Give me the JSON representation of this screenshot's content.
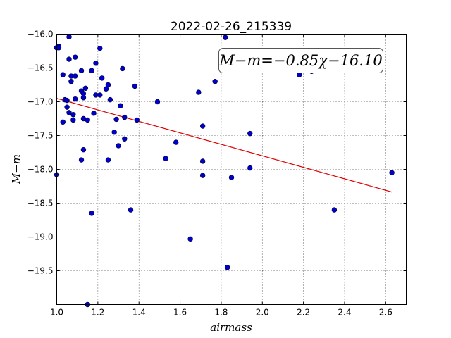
{
  "chart_data": {
    "type": "scatter",
    "title": "2022-02-26_215339",
    "xlabel": "airmass",
    "ylabel": "M−m",
    "xlim": [
      1.0,
      2.7
    ],
    "ylim": [
      -16.0,
      -20.0
    ],
    "y_inverted": true,
    "grid": true,
    "x_ticks": [
      1.0,
      1.2,
      1.4,
      1.6,
      1.8,
      2.0,
      2.2,
      2.4,
      2.6
    ],
    "x_tick_labels": [
      "1.0",
      "1.2",
      "1.4",
      "1.6",
      "1.8",
      "2.0",
      "2.2",
      "2.4",
      "2.6"
    ],
    "y_ticks": [
      -16.0,
      -16.5,
      -17.0,
      -17.5,
      -18.0,
      -18.5,
      -19.0,
      -19.5
    ],
    "y_tick_labels": [
      "−16.0",
      "−16.5",
      "−17.0",
      "−17.5",
      "−18.0",
      "−18.5",
      "−19.0",
      "−19.5"
    ],
    "annotation": "M−m=−0.85χ−16.10",
    "point_color": "#0000cc",
    "fit_color": "#dd0000",
    "fit": {
      "slope": -0.85,
      "intercept": -16.1,
      "x_range": [
        1.0,
        2.63
      ]
    },
    "points": [
      [
        1.0,
        -18.08
      ],
      [
        1.0,
        -16.2
      ],
      [
        1.01,
        -16.18
      ],
      [
        1.01,
        -16.2
      ],
      [
        1.03,
        -16.6
      ],
      [
        1.03,
        -17.3
      ],
      [
        1.04,
        -16.97
      ],
      [
        1.05,
        -16.98
      ],
      [
        1.05,
        -17.08
      ],
      [
        1.06,
        -16.04
      ],
      [
        1.06,
        -16.37
      ],
      [
        1.06,
        -17.16
      ],
      [
        1.07,
        -16.62
      ],
      [
        1.07,
        -16.7
      ],
      [
        1.08,
        -17.19
      ],
      [
        1.08,
        -17.27
      ],
      [
        1.09,
        -16.34
      ],
      [
        1.09,
        -16.62
      ],
      [
        1.09,
        -16.96
      ],
      [
        1.12,
        -16.84
      ],
      [
        1.12,
        -16.54
      ],
      [
        1.12,
        -17.86
      ],
      [
        1.13,
        -16.94
      ],
      [
        1.13,
        -16.88
      ],
      [
        1.13,
        -17.25
      ],
      [
        1.13,
        -17.71
      ],
      [
        1.14,
        -16.8
      ],
      [
        1.15,
        -17.27
      ],
      [
        1.15,
        -20.0
      ],
      [
        1.17,
        -18.65
      ],
      [
        1.17,
        -16.54
      ],
      [
        1.18,
        -17.17
      ],
      [
        1.19,
        -16.43
      ],
      [
        1.19,
        -16.9
      ],
      [
        1.21,
        -16.9
      ],
      [
        1.21,
        -16.21
      ],
      [
        1.22,
        -16.65
      ],
      [
        1.24,
        -16.81
      ],
      [
        1.25,
        -16.75
      ],
      [
        1.25,
        -17.86
      ],
      [
        1.26,
        -16.97
      ],
      [
        1.28,
        -17.45
      ],
      [
        1.29,
        -17.26
      ],
      [
        1.3,
        -17.65
      ],
      [
        1.31,
        -17.06
      ],
      [
        1.32,
        -16.51
      ],
      [
        1.33,
        -17.55
      ],
      [
        1.33,
        -17.23
      ],
      [
        1.36,
        -18.6
      ],
      [
        1.38,
        -16.77
      ],
      [
        1.39,
        -17.27
      ],
      [
        1.49,
        -17.0
      ],
      [
        1.53,
        -17.84
      ],
      [
        1.58,
        -17.6
      ],
      [
        1.65,
        -19.03
      ],
      [
        1.69,
        -16.86
      ],
      [
        1.71,
        -17.36
      ],
      [
        1.71,
        -17.88
      ],
      [
        1.71,
        -18.09
      ],
      [
        1.77,
        -16.7
      ],
      [
        1.82,
        -16.05
      ],
      [
        1.83,
        -19.45
      ],
      [
        1.85,
        -18.12
      ],
      [
        1.94,
        -17.47
      ],
      [
        1.94,
        -17.98
      ],
      [
        2.18,
        -16.6
      ],
      [
        2.24,
        -16.55
      ],
      [
        2.35,
        -18.6
      ],
      [
        2.63,
        -18.05
      ]
    ]
  }
}
